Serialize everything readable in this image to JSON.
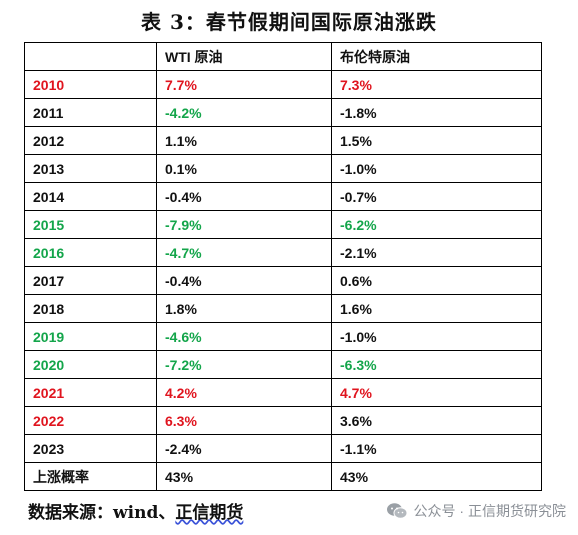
{
  "title": "表 3：春节假期间国际原油涨跌",
  "table": {
    "headers": [
      "",
      "WTI 原油",
      "布伦特原油"
    ],
    "rows": [
      {
        "year": "2010",
        "wti": "7.7%",
        "brent": "7.3%",
        "year_color": "red",
        "wti_color": "red",
        "brent_color": "red"
      },
      {
        "year": "2011",
        "wti": "-4.2%",
        "brent": "-1.8%",
        "year_color": "black",
        "wti_color": "green",
        "brent_color": "black"
      },
      {
        "year": "2012",
        "wti": "1.1%",
        "brent": "1.5%",
        "year_color": "black",
        "wti_color": "black",
        "brent_color": "black"
      },
      {
        "year": "2013",
        "wti": "0.1%",
        "brent": "-1.0%",
        "year_color": "black",
        "wti_color": "black",
        "brent_color": "black"
      },
      {
        "year": "2014",
        "wti": "-0.4%",
        "brent": "-0.7%",
        "year_color": "black",
        "wti_color": "black",
        "brent_color": "black"
      },
      {
        "year": "2015",
        "wti": "-7.9%",
        "brent": "-6.2%",
        "year_color": "green",
        "wti_color": "green",
        "brent_color": "green"
      },
      {
        "year": "2016",
        "wti": "-4.7%",
        "brent": "-2.1%",
        "year_color": "green",
        "wti_color": "green",
        "brent_color": "black"
      },
      {
        "year": "2017",
        "wti": "-0.4%",
        "brent": "0.6%",
        "year_color": "black",
        "wti_color": "black",
        "brent_color": "black"
      },
      {
        "year": "2018",
        "wti": "1.8%",
        "brent": "1.6%",
        "year_color": "black",
        "wti_color": "black",
        "brent_color": "black"
      },
      {
        "year": "2019",
        "wti": "-4.6%",
        "brent": "-1.0%",
        "year_color": "green",
        "wti_color": "green",
        "brent_color": "black"
      },
      {
        "year": "2020",
        "wti": "-7.2%",
        "brent": "-6.3%",
        "year_color": "green",
        "wti_color": "green",
        "brent_color": "green"
      },
      {
        "year": "2021",
        "wti": "4.2%",
        "brent": "4.7%",
        "year_color": "red",
        "wti_color": "red",
        "brent_color": "red"
      },
      {
        "year": "2022",
        "wti": "6.3%",
        "brent": "3.6%",
        "year_color": "red",
        "wti_color": "red",
        "brent_color": "black"
      },
      {
        "year": "2023",
        "wti": "-2.4%",
        "brent": "-1.1%",
        "year_color": "black",
        "wti_color": "black",
        "brent_color": "black"
      },
      {
        "year": "上涨概率",
        "wti": "43%",
        "brent": "43%",
        "year_color": "black",
        "wti_color": "black",
        "brent_color": "black"
      }
    ]
  },
  "source": {
    "prefix": "数据来源：wind、",
    "underlined": "正信期货"
  },
  "watermark": {
    "icon": "wechat-icon",
    "text": "公众号 · 正信期货研究院",
    "color": "#8a8f96"
  },
  "colors": {
    "red": "#e0141e",
    "green": "#13a54a",
    "black": "#111111"
  }
}
